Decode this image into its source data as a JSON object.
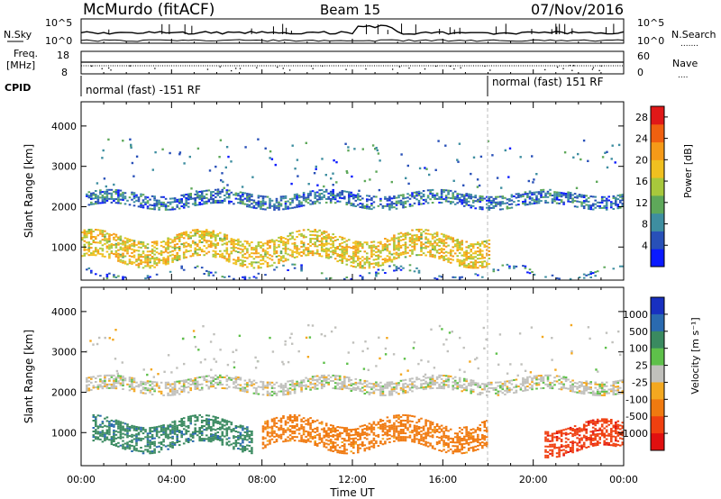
{
  "header": {
    "station": "McMurdo (fitACF)",
    "beam": "Beam 15",
    "date": "07/Nov/2016"
  },
  "summary": {
    "nsky_label": "N.Sky",
    "nsky_ticks": [
      "10^5",
      "10^0"
    ],
    "nsearch_label": "N.Search",
    "nsearch_ticks": [
      "10^5",
      "10^0"
    ],
    "freq_label": "Freq.",
    "freq_unit": "[MHz]",
    "freq_ticks": [
      "18",
      "8"
    ],
    "nave_label": "Nave",
    "nave_ticks": [
      "60",
      "0"
    ],
    "cpid_label": "CPID",
    "cpid_segments": [
      {
        "label": "normal (fast) -151 RF",
        "start_hour": 0
      },
      {
        "label": "normal (fast) 151 RF",
        "start_hour": 18.1
      }
    ]
  },
  "chart_data": [
    {
      "type": "heatmap",
      "title": "",
      "xlabel": "Time UT",
      "ylabel": "Slant Range [km]",
      "x_tick_labels": [
        "00:00",
        "04:00",
        "08:00",
        "12:00",
        "16:00",
        "20:00",
        "00:00"
      ],
      "xlim_hours": [
        0,
        24
      ],
      "ylim": [
        180,
        4600
      ],
      "y_ticks": [
        1000,
        2000,
        3000,
        4000
      ],
      "colorbar": {
        "label": "Power [dB]",
        "ticks": [
          4,
          8,
          12,
          16,
          20,
          24,
          28
        ],
        "range": [
          0,
          30
        ],
        "colors": [
          "#0a1aff",
          "#2850b8",
          "#3e8ea0",
          "#5ea85a",
          "#a8c83c",
          "#f0c020",
          "#f59a18",
          "#f06010",
          "#e01818"
        ]
      },
      "bands": [
        {
          "label": "~2150 km echoes (weak)",
          "t_start": 0.2,
          "t_end": 24,
          "range_center": 2150,
          "value": 7
        },
        {
          "label": "~1000 km echoes (strong)",
          "t_start": 0,
          "t_end": 18,
          "range_center": 950,
          "value": 18
        },
        {
          "label": "near-range clutter",
          "t_start": 0,
          "t_end": 24,
          "range_center": 320,
          "value": 6
        }
      ]
    },
    {
      "type": "heatmap",
      "title": "",
      "xlabel": "Time UT",
      "ylabel": "Slant Range [km]",
      "x_tick_labels": [
        "00:00",
        "04:00",
        "08:00",
        "12:00",
        "16:00",
        "20:00",
        "00:00"
      ],
      "xlim_hours": [
        0,
        24
      ],
      "ylim": [
        180,
        4600
      ],
      "y_ticks": [
        1000,
        2000,
        3000,
        4000
      ],
      "colorbar": {
        "label": "Velocity [m s⁻¹]",
        "ticks": [
          1000,
          500,
          100,
          25,
          -25,
          -100,
          -500,
          -1000
        ],
        "colors": [
          "#1830c0",
          "#2a6ab0",
          "#3a8a60",
          "#5ec04a",
          "#c0c0bc",
          "#f3a820",
          "#f07a10",
          "#f04010",
          "#e01010"
        ]
      },
      "bands": [
        {
          "label": "~2150 km echoes (near zero)",
          "t_start": 0.2,
          "t_end": 24,
          "range_center": 2150,
          "value": 0
        },
        {
          "label": "~1000 km echoes early (toward)",
          "t_start": 0.5,
          "t_end": 7.5,
          "range_center": 950,
          "value": 150
        },
        {
          "label": "~1000 km echoes late (away)",
          "t_start": 8,
          "t_end": 18,
          "range_center": 950,
          "value": -150
        },
        {
          "label": "evening echoes (away)",
          "t_start": 20.5,
          "t_end": 24,
          "range_center": 850,
          "value": -600
        }
      ]
    }
  ]
}
